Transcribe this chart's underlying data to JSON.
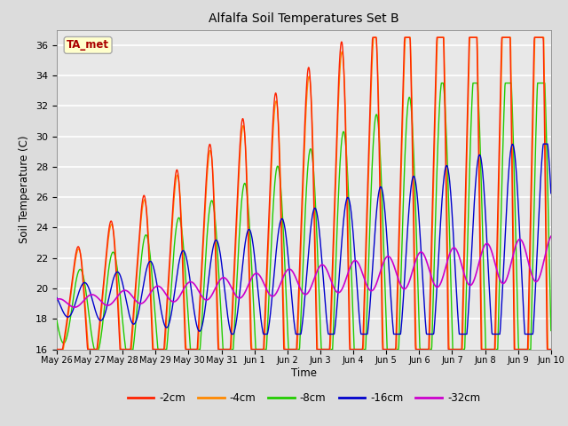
{
  "title": "Alfalfa Soil Temperatures Set B",
  "xlabel": "Time",
  "ylabel": "Soil Temperature (C)",
  "ylim": [
    16,
    37
  ],
  "background_color": "#dcdcdc",
  "plot_bg_color": "#e8e8e8",
  "colors": {
    "-2cm": "#ff2200",
    "-4cm": "#ff8800",
    "-8cm": "#22cc00",
    "-16cm": "#0000cc",
    "-32cm": "#cc00cc"
  },
  "legend_labels": [
    "-2cm",
    "-4cm",
    "-8cm",
    "-16cm",
    "-32cm"
  ],
  "ta_met_label": "TA_met",
  "ta_met_bg": "#ffffcc",
  "ta_met_border": "#aaaaaa",
  "ta_met_text_color": "#aa0000",
  "x_tick_labels": [
    "May 26",
    "May 27",
    "May 28",
    "May 29",
    "May 30",
    "May 31",
    "Jun 1",
    "Jun 2",
    "Jun 3",
    "Jun 4",
    "Jun 5",
    "Jun 6",
    "Jun 7",
    "Jun 8",
    "Jun 9",
    "Jun 10"
  ],
  "grid_color": "#ffffff",
  "num_days": 15,
  "pts_per_day": 96
}
